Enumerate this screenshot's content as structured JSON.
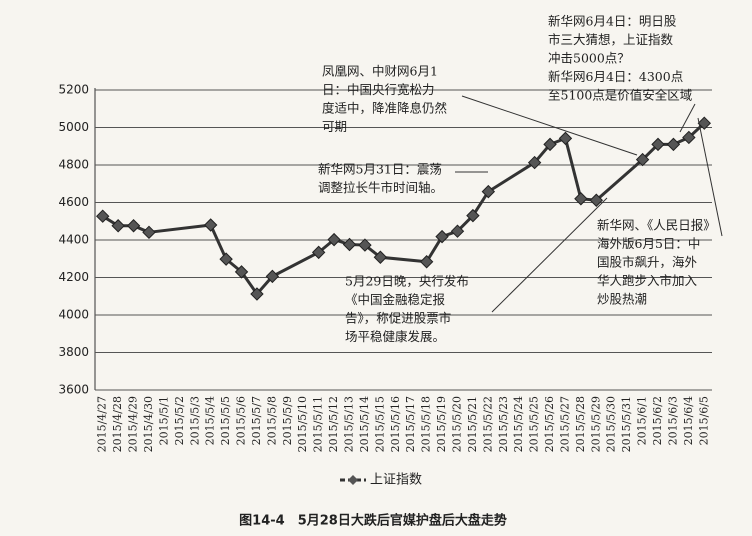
{
  "chart_data": {
    "type": "line",
    "caption": "图14-4　5月28日大跌后官媒护盘后大盘走势",
    "categories": [
      "2015/4/27",
      "2015/4/28",
      "2015/4/29",
      "2015/4/30",
      "2015/5/1",
      "2015/5/2",
      "2015/5/3",
      "2015/5/4",
      "2015/5/5",
      "2015/5/6",
      "2015/5/7",
      "2015/5/8",
      "2015/5/9",
      "2015/5/10",
      "2015/5/11",
      "2015/5/12",
      "2015/5/13",
      "2015/5/14",
      "2015/5/15",
      "2015/5/16",
      "2015/5/17",
      "2015/5/18",
      "2015/5/19",
      "2015/5/20",
      "2015/5/21",
      "2015/5/22",
      "2015/5/23",
      "2015/5/24",
      "2015/5/25",
      "2015/5/26",
      "2015/5/27",
      "2015/5/28",
      "2015/5/29",
      "2015/5/30",
      "2015/5/31",
      "2015/6/1",
      "2015/6/2",
      "2015/6/3",
      "2015/6/4",
      "2015/6/5"
    ],
    "series": [
      {
        "name": "上证指数",
        "color": "#333333",
        "values": [
          4527,
          4476,
          4476,
          4441,
          null,
          null,
          null,
          4480,
          4298,
          4230,
          4112,
          4206,
          null,
          null,
          4334,
          4402,
          4376,
          4373,
          4308,
          null,
          null,
          4284,
          4418,
          4447,
          4530,
          4658,
          null,
          null,
          4813,
          4910,
          4942,
          4620,
          4612,
          null,
          null,
          4829,
          4910,
          4910,
          4947,
          5023
        ]
      }
    ],
    "ylim": [
      3600,
      5200
    ],
    "yticks": [
      3600,
      3800,
      4000,
      4200,
      4400,
      4600,
      4800,
      5000,
      5200
    ],
    "grid": true,
    "annotations": [
      {
        "lines": [
          "凤凰网、中财网6月1",
          "日：中国央行宽松力",
          "度适中，降准降息仍然",
          "可期"
        ]
      },
      {
        "lines": [
          "新华网6月4日：明日股",
          "市三大猜想，上证指数",
          "冲击5000点？",
          "新华网6月4日：4300点",
          "至5100点是价值安全区域"
        ]
      },
      {
        "lines": [
          "新华网5月31日：震荡",
          "调整拉长牛市时间轴。"
        ]
      },
      {
        "lines": [
          "5月29日晚，央行发布",
          "《中国金融稳定报",
          "告》，称促进股票市",
          "场平稳健康发展。"
        ]
      },
      {
        "lines": [
          "新华网、《人民日报》",
          "海外版6月5日：中",
          "国股市飙升，海外",
          "华人跑步入市加入",
          "炒股热潮"
        ]
      }
    ]
  }
}
